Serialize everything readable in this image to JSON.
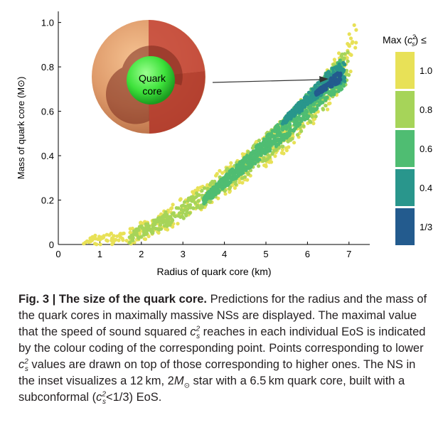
{
  "chart_data": {
    "type": "scatter",
    "title": "",
    "xlabel": "Radius of quark core (km)",
    "ylabel": "Mass of quark core (M⊙)",
    "xlim": [
      0,
      7.5
    ],
    "ylim": [
      0,
      1.05
    ],
    "xticks": [
      "0",
      "1",
      "2",
      "3",
      "4",
      "5",
      "6",
      "7"
    ],
    "yticks": [
      "0",
      "0.2",
      "0.4",
      "0.6",
      "0.8",
      "1.0"
    ],
    "legend": {
      "title": "Max (c²s) ≤",
      "entries": [
        {
          "label": "1.0",
          "color": "#e8e157"
        },
        {
          "label": "0.8",
          "color": "#a6d459"
        },
        {
          "label": "0.6",
          "color": "#4fbd72"
        },
        {
          "label": "0.4",
          "color": "#29968c"
        },
        {
          "label": "1/3",
          "color": "#235b8e"
        }
      ]
    },
    "series": [
      {
        "name": "1.0",
        "color": "#e8e157",
        "band": {
          "x": [
            0.6,
            7.2
          ],
          "y_at_x": [
            [
              0.6,
              0.005
            ],
            [
              1.5,
              0.02
            ],
            [
              2.5,
              0.1
            ],
            [
              3.5,
              0.22
            ],
            [
              4.5,
              0.35
            ],
            [
              5.5,
              0.5
            ],
            [
              6.5,
              0.7
            ],
            [
              7.2,
              0.92
            ]
          ]
        }
      },
      {
        "name": "0.8",
        "color": "#a6d459",
        "band": {
          "x": [
            1.7,
            7.0
          ],
          "y_at_x": [
            [
              1.7,
              0.03
            ],
            [
              3.0,
              0.15
            ],
            [
              4.0,
              0.28
            ],
            [
              5.0,
              0.44
            ],
            [
              6.0,
              0.6
            ],
            [
              7.0,
              0.82
            ]
          ]
        }
      },
      {
        "name": "0.6",
        "color": "#4fbd72",
        "band": {
          "x": [
            3.5,
            6.9
          ],
          "y_at_x": [
            [
              3.5,
              0.2
            ],
            [
              4.5,
              0.36
            ],
            [
              5.5,
              0.53
            ],
            [
              6.5,
              0.72
            ],
            [
              6.9,
              0.78
            ]
          ]
        }
      },
      {
        "name": "0.4",
        "color": "#29968c",
        "band": {
          "x": [
            5.4,
            6.9
          ],
          "y_at_x": [
            [
              5.4,
              0.55
            ],
            [
              6.0,
              0.65
            ],
            [
              6.5,
              0.74
            ],
            [
              6.9,
              0.78
            ]
          ]
        }
      },
      {
        "name": "1/3",
        "color": "#235b8e",
        "band": {
          "x": [
            6.2,
            6.8
          ],
          "y_at_x": [
            [
              6.2,
              0.68
            ],
            [
              6.5,
              0.72
            ],
            [
              6.8,
              0.76
            ]
          ]
        }
      }
    ],
    "inset": {
      "label_line1": "Quark",
      "label_line2": "core",
      "arrow_target": [
        6.5,
        0.72
      ]
    }
  },
  "caption": {
    "fig_label": "Fig. 3 | The size of the quark core.",
    "s1": " Predictions for the radius and the mass of the quark cores in maximally massive NSs are displayed. The maximal value that the speed of sound squared ",
    "s2": " reaches in each individual EoS is indicated by the colour coding of the corresponding point. Points corresponding to lower ",
    "s3": " values are drawn on top of those corresponding to higher ones. The NS in the inset visualizes a 12 km, 2",
    "s4": " star with a 6.5 km quark core, built with a subconformal (",
    "s5": "<1/3) EoS.",
    "cs_c": "c",
    "cs_sup": "2",
    "cs_sub": "s",
    "m_letter": "M",
    "m_sun": "⊙"
  }
}
